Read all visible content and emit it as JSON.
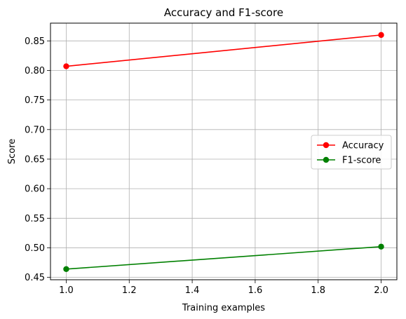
{
  "chart_data": {
    "type": "line",
    "title": "Accuracy and F1-score",
    "xlabel": "Training examples",
    "ylabel": "Score",
    "xlim": [
      0.95,
      2.05
    ],
    "ylim": [
      0.446,
      0.88
    ],
    "xticks": [
      1.0,
      1.2,
      1.4,
      1.6,
      1.8,
      2.0
    ],
    "xtick_labels": [
      "1.0",
      "1.2",
      "1.4",
      "1.6",
      "1.8",
      "2.0"
    ],
    "yticks": [
      0.45,
      0.5,
      0.55,
      0.6,
      0.65,
      0.7,
      0.75,
      0.8,
      0.85
    ],
    "ytick_labels": [
      "0.45",
      "0.50",
      "0.55",
      "0.60",
      "0.65",
      "0.70",
      "0.75",
      "0.80",
      "0.85"
    ],
    "grid": true,
    "legend_position": "center-right",
    "series": [
      {
        "name": "Accuracy",
        "color": "#ff0000",
        "x": [
          1.0,
          2.0
        ],
        "y": [
          0.807,
          0.86
        ]
      },
      {
        "name": "F1-score",
        "color": "#008000",
        "x": [
          1.0,
          2.0
        ],
        "y": [
          0.464,
          0.502
        ]
      }
    ]
  }
}
